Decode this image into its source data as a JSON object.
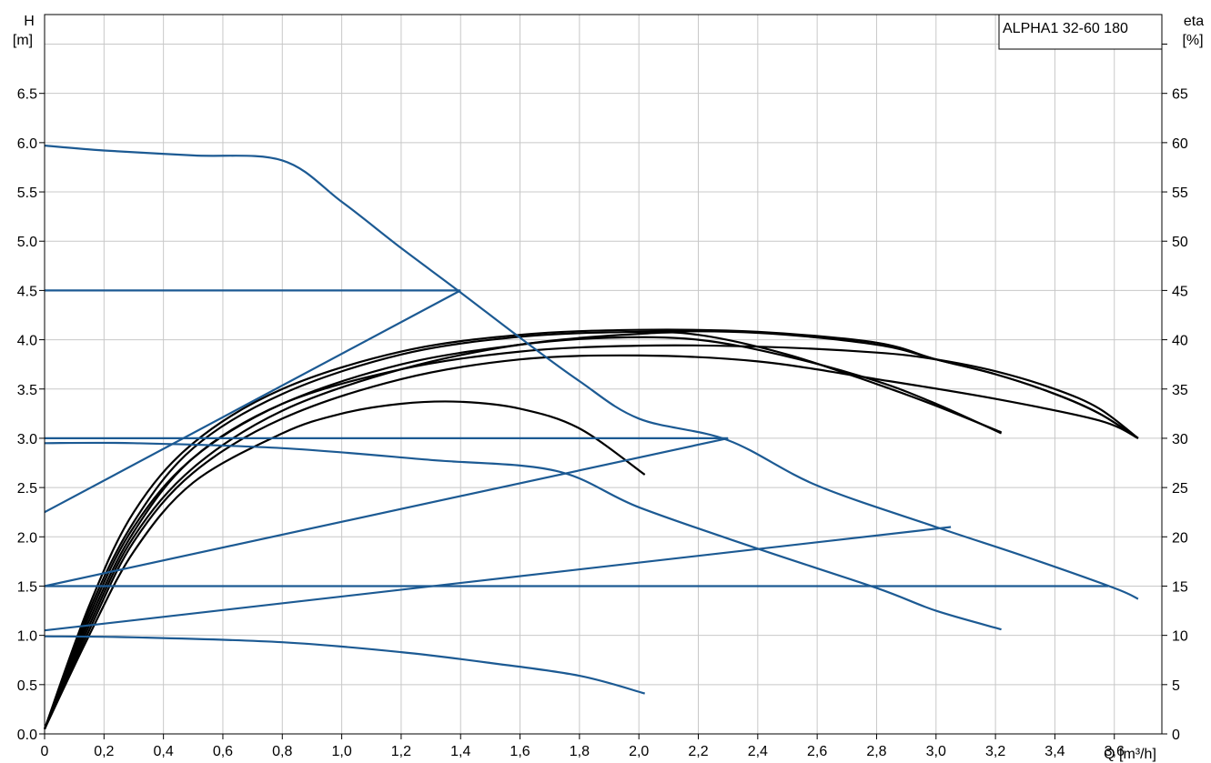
{
  "chart_data": {
    "type": "line",
    "model": "ALPHA1 32-60 180",
    "y_left_label": [
      "H",
      "[m]"
    ],
    "y_right_label": [
      "eta",
      "[%]"
    ],
    "x_label": "Q [m³/h]",
    "xlim": [
      0,
      3.76
    ],
    "ylim_left": [
      0,
      7.3
    ],
    "ylim_right": [
      0,
      73
    ],
    "x_ticks": [
      {
        "v": 0,
        "label": "0"
      },
      {
        "v": 0.2,
        "label": "0,2"
      },
      {
        "v": 0.4,
        "label": "0,4"
      },
      {
        "v": 0.6,
        "label": "0,6"
      },
      {
        "v": 0.8,
        "label": "0,8"
      },
      {
        "v": 1.0,
        "label": "1,0"
      },
      {
        "v": 1.2,
        "label": "1,2"
      },
      {
        "v": 1.4,
        "label": "1,4"
      },
      {
        "v": 1.6,
        "label": "1,6"
      },
      {
        "v": 1.8,
        "label": "1,8"
      },
      {
        "v": 2.0,
        "label": "2,0"
      },
      {
        "v": 2.2,
        "label": "2,2"
      },
      {
        "v": 2.4,
        "label": "2,4"
      },
      {
        "v": 2.6,
        "label": "2,6"
      },
      {
        "v": 2.8,
        "label": "2,8"
      },
      {
        "v": 3.0,
        "label": "3,0"
      },
      {
        "v": 3.2,
        "label": "3,2"
      },
      {
        "v": 3.4,
        "label": "3,4"
      },
      {
        "v": 3.6,
        "label": "3,6"
      }
    ],
    "y_left_ticks": [
      {
        "v": 0,
        "label": "0.0"
      },
      {
        "v": 0.5,
        "label": "0.5"
      },
      {
        "v": 1.0,
        "label": "1.0"
      },
      {
        "v": 1.5,
        "label": "1.5"
      },
      {
        "v": 2.0,
        "label": "2.0"
      },
      {
        "v": 2.5,
        "label": "2.5"
      },
      {
        "v": 3.0,
        "label": "3.0"
      },
      {
        "v": 3.5,
        "label": "3.5"
      },
      {
        "v": 4.0,
        "label": "4.0"
      },
      {
        "v": 4.5,
        "label": "4.5"
      },
      {
        "v": 5.0,
        "label": "5.0"
      },
      {
        "v": 5.5,
        "label": "5.5"
      },
      {
        "v": 6.0,
        "label": "6.0"
      },
      {
        "v": 6.5,
        "label": "6.5"
      }
    ],
    "y_right_ticks": [
      {
        "v": 0,
        "label": "0"
      },
      {
        "v": 5,
        "label": "5"
      },
      {
        "v": 10,
        "label": "10"
      },
      {
        "v": 15,
        "label": "15"
      },
      {
        "v": 20,
        "label": "20"
      },
      {
        "v": 25,
        "label": "25"
      },
      {
        "v": 30,
        "label": "30"
      },
      {
        "v": 35,
        "label": "35"
      },
      {
        "v": 40,
        "label": "40"
      },
      {
        "v": 45,
        "label": "45"
      },
      {
        "v": 50,
        "label": "50"
      },
      {
        "v": 55,
        "label": "55"
      },
      {
        "v": 60,
        "label": "60"
      },
      {
        "v": 65,
        "label": "65"
      },
      {
        "v": 70,
        "label": ""
      }
    ],
    "x_grid": [
      0,
      0.2,
      0.4,
      0.6,
      0.8,
      1.0,
      1.2,
      1.4,
      1.6,
      1.8,
      2.0,
      2.2,
      2.4,
      2.6,
      2.8,
      3.0,
      3.2,
      3.4,
      3.6
    ],
    "y_grid": [
      0.5,
      1.0,
      1.5,
      2.0,
      2.5,
      3.0,
      3.5,
      4.0,
      4.5,
      5.0,
      5.5,
      6.0,
      6.5,
      7.0
    ],
    "grid": true,
    "head_series": [
      {
        "points": [
          [
            0,
            5.97
          ],
          [
            0.2,
            5.92
          ],
          [
            0.5,
            5.87
          ],
          [
            0.8,
            5.82
          ],
          [
            1.0,
            5.4
          ],
          [
            1.2,
            4.93
          ],
          [
            1.4,
            4.48
          ],
          [
            1.6,
            4.02
          ],
          [
            1.8,
            3.58
          ],
          [
            2.0,
            3.2
          ],
          [
            2.3,
            2.98
          ],
          [
            2.6,
            2.52
          ],
          [
            3.0,
            2.1
          ],
          [
            3.3,
            1.8
          ],
          [
            3.6,
            1.48
          ],
          [
            3.68,
            1.37
          ]
        ]
      },
      {
        "points": [
          [
            0,
            4.5
          ],
          [
            1.4,
            4.5
          ]
        ]
      },
      {
        "points": [
          [
            0,
            3.0
          ],
          [
            2.3,
            3.0
          ]
        ]
      },
      {
        "points": [
          [
            0,
            1.5
          ],
          [
            3.58,
            1.5
          ]
        ]
      },
      {
        "points": [
          [
            0,
            2.25
          ],
          [
            1.4,
            4.5
          ]
        ]
      },
      {
        "points": [
          [
            0,
            1.5
          ],
          [
            2.3,
            3.0
          ]
        ]
      },
      {
        "points": [
          [
            0,
            1.05
          ],
          [
            3.05,
            2.1
          ]
        ]
      },
      {
        "points": [
          [
            0,
            2.95
          ],
          [
            0.3,
            2.95
          ],
          [
            0.8,
            2.9
          ],
          [
            1.3,
            2.78
          ],
          [
            1.72,
            2.67
          ],
          [
            2.0,
            2.3
          ],
          [
            2.4,
            1.88
          ],
          [
            2.8,
            1.48
          ],
          [
            3.0,
            1.25
          ],
          [
            3.22,
            1.06
          ]
        ]
      },
      {
        "points": [
          [
            0,
            0.99
          ],
          [
            0.3,
            0.98
          ],
          [
            0.8,
            0.93
          ],
          [
            1.2,
            0.83
          ],
          [
            1.5,
            0.72
          ],
          [
            1.8,
            0.59
          ],
          [
            2.02,
            0.41
          ]
        ]
      }
    ],
    "eta_series": [
      {
        "points": [
          [
            0,
            0.5
          ],
          [
            0.15,
            10
          ],
          [
            0.3,
            18.5
          ],
          [
            0.5,
            25.5
          ],
          [
            0.8,
            30.5
          ],
          [
            1.0,
            32.5
          ],
          [
            1.2,
            33.5
          ],
          [
            1.4,
            33.7
          ],
          [
            1.6,
            33
          ],
          [
            1.8,
            31
          ],
          [
            2.02,
            26.3
          ]
        ]
      },
      {
        "points": [
          [
            0,
            0.5
          ],
          [
            0.15,
            11
          ],
          [
            0.3,
            20
          ],
          [
            0.5,
            27
          ],
          [
            0.8,
            32.8
          ],
          [
            1.2,
            37
          ],
          [
            1.6,
            39.5
          ],
          [
            2.0,
            40.6
          ],
          [
            2.2,
            40.5
          ],
          [
            2.5,
            38.5
          ],
          [
            2.8,
            35.5
          ],
          [
            3.0,
            33.3
          ],
          [
            3.22,
            30.6
          ]
        ]
      },
      {
        "points": [
          [
            0,
            0.5
          ],
          [
            0.15,
            12
          ],
          [
            0.3,
            21
          ],
          [
            0.5,
            28
          ],
          [
            0.8,
            33.5
          ],
          [
            1.2,
            37.5
          ],
          [
            1.6,
            39.5
          ],
          [
            1.9,
            40.2
          ],
          [
            2.2,
            40
          ],
          [
            2.5,
            38.3
          ],
          [
            2.8,
            35.8
          ],
          [
            3.0,
            33.5
          ],
          [
            3.22,
            30.5
          ]
        ]
      },
      {
        "points": [
          [
            0,
            0.5
          ],
          [
            0.15,
            10.5
          ],
          [
            0.3,
            19.5
          ],
          [
            0.5,
            26.5
          ],
          [
            0.8,
            32
          ],
          [
            1.2,
            36
          ],
          [
            1.6,
            38
          ],
          [
            2.0,
            38.4
          ],
          [
            2.4,
            37.8
          ],
          [
            2.8,
            36
          ],
          [
            3.2,
            34
          ],
          [
            3.55,
            31.8
          ],
          [
            3.68,
            30
          ]
        ]
      },
      {
        "points": [
          [
            0,
            0.5
          ],
          [
            0.15,
            11.5
          ],
          [
            0.3,
            20.5
          ],
          [
            0.5,
            28
          ],
          [
            0.8,
            33.5
          ],
          [
            1.2,
            37
          ],
          [
            1.6,
            38.8
          ],
          [
            2.0,
            39.4
          ],
          [
            2.4,
            39.3
          ],
          [
            2.8,
            38.7
          ],
          [
            3.0,
            38
          ],
          [
            3.2,
            36.8
          ],
          [
            3.4,
            35
          ],
          [
            3.55,
            33
          ],
          [
            3.68,
            30
          ]
        ]
      },
      {
        "points": [
          [
            0,
            0.5
          ],
          [
            0.15,
            12.5
          ],
          [
            0.3,
            21.5
          ],
          [
            0.5,
            29
          ],
          [
            0.8,
            34.5
          ],
          [
            1.2,
            38.5
          ],
          [
            1.6,
            40.3
          ],
          [
            2.0,
            40.8
          ],
          [
            2.4,
            40.7
          ],
          [
            2.8,
            39.5
          ],
          [
            3.0,
            38
          ],
          [
            3.2,
            36.5
          ],
          [
            3.4,
            34.5
          ],
          [
            3.55,
            32.5
          ],
          [
            3.68,
            30
          ]
        ]
      },
      {
        "points": [
          [
            0,
            0.5
          ],
          [
            0.15,
            13
          ],
          [
            0.3,
            22.5
          ],
          [
            0.5,
            29.5
          ],
          [
            0.8,
            35
          ],
          [
            1.2,
            38.8
          ],
          [
            1.6,
            40.5
          ],
          [
            2.0,
            41
          ],
          [
            2.4,
            40.8
          ],
          [
            2.8,
            39.7
          ],
          [
            3.0,
            38
          ],
          [
            3.2,
            36.5
          ],
          [
            3.4,
            34.5
          ],
          [
            3.55,
            32.5
          ],
          [
            3.68,
            30
          ]
        ]
      }
    ]
  }
}
